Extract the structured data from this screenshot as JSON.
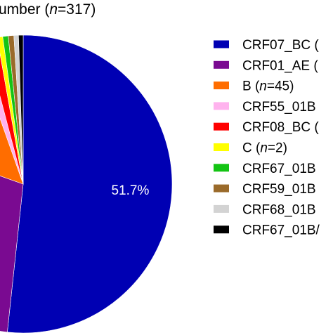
{
  "chart_data": {
    "type": "pie",
    "title": {
      "prefix": "umber (",
      "italic": "n",
      "suffix": "=317)"
    },
    "slices": [
      {
        "name": "CRF07_BC (",
        "italic": "",
        "tail": "",
        "value": 51.7,
        "color": "#0000b3",
        "label": "51.7%"
      },
      {
        "name": "CRF01_AE (",
        "italic": "",
        "tail": "",
        "value": 28.7,
        "color": "#7a0a91",
        "label": ""
      },
      {
        "name": "B (",
        "italic": "n",
        "tail": "=45)",
        "value": 14.2,
        "color": "#ff6d00",
        "label": ""
      },
      {
        "name": "CRF55_01B",
        "italic": "",
        "tail": "",
        "value": 1.3,
        "color": "#ffb3ee",
        "label": ""
      },
      {
        "name": "CRF08_BC (",
        "italic": "",
        "tail": "",
        "value": 1.3,
        "color": "#ff0000",
        "label": ""
      },
      {
        "name": "C (",
        "italic": "n",
        "tail": "=2)",
        "value": 0.6,
        "color": "#ffff00",
        "label": ""
      },
      {
        "name": "CRF67_01B",
        "italic": "",
        "tail": "",
        "value": 0.6,
        "color": "#14c414",
        "label": ""
      },
      {
        "name": "CRF59_01B",
        "italic": "",
        "tail": "",
        "value": 0.6,
        "color": "#9a6a2a",
        "label": ""
      },
      {
        "name": "CRF68_01B",
        "italic": "",
        "tail": "",
        "value": 0.5,
        "color": "#d3d3d3",
        "label": ""
      },
      {
        "name": "CRF67_01B/",
        "italic": "",
        "tail": "",
        "value": 0.5,
        "color": "#000000",
        "label": ""
      }
    ],
    "legend_position": "right"
  }
}
